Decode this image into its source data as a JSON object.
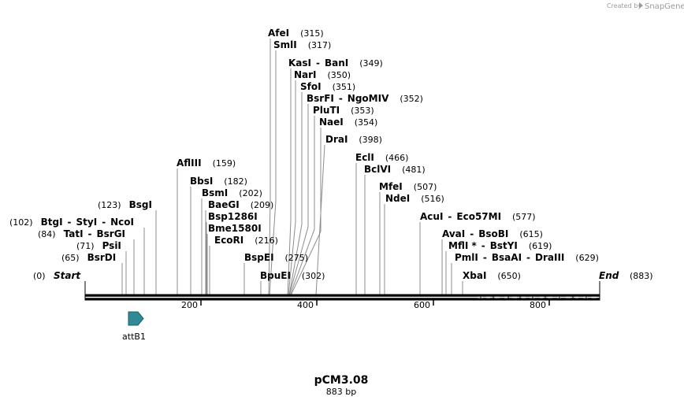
{
  "credit": {
    "created_by": "Created by",
    "brand": "SnapGene"
  },
  "map": {
    "name": "pCM3.08",
    "length_label": "883 bp",
    "start_label": "Start",
    "start_pos": "(0)",
    "end_label": "End",
    "end_pos": "(883)",
    "ticks": [
      "200",
      "400",
      "600",
      "800"
    ]
  },
  "feature": {
    "label": "attB1"
  },
  "sites": [
    {
      "names": [
        "AfeI"
      ],
      "pos": "(315)"
    },
    {
      "names": [
        "SmlI"
      ],
      "pos": "(317)"
    },
    {
      "names": [
        "KasI",
        "BanI"
      ],
      "pos": "(349)"
    },
    {
      "names": [
        "NarI"
      ],
      "pos": "(350)"
    },
    {
      "names": [
        "SfoI"
      ],
      "pos": "(351)"
    },
    {
      "names": [
        "BsrFI",
        "NgoMIV"
      ],
      "pos": "(352)"
    },
    {
      "names": [
        "PluTI"
      ],
      "pos": "(353)"
    },
    {
      "names": [
        "NaeI"
      ],
      "pos": "(354)"
    },
    {
      "names": [
        "DraI"
      ],
      "pos": "(398)"
    },
    {
      "names": [
        "EclI"
      ],
      "pos": "(466)"
    },
    {
      "names": [
        "AflIII"
      ],
      "pos": "(159)"
    },
    {
      "names": [
        "BclVI"
      ],
      "pos": "(481)"
    },
    {
      "names": [
        "BbsI"
      ],
      "pos": "(182)"
    },
    {
      "names": [
        "MfeI"
      ],
      "pos": "(507)"
    },
    {
      "names": [
        "BsmI"
      ],
      "pos": "(202)"
    },
    {
      "names": [
        "NdeI"
      ],
      "pos": "(516)"
    },
    {
      "names": [
        "BsgI"
      ],
      "pos": "(123)"
    },
    {
      "names": [
        "BaeGI"
      ],
      "pos": "(209)"
    },
    {
      "names": [
        "Bsp1286I"
      ],
      "pos": ""
    },
    {
      "names": [
        "AcuI",
        "Eco57MI"
      ],
      "pos": "(577)"
    },
    {
      "names": [
        "BtgI",
        "StyI",
        "NcoI"
      ],
      "pos": "(102)"
    },
    {
      "names": [
        "Bme1580I"
      ],
      "pos": ""
    },
    {
      "names": [
        "TatI",
        "BsrGI"
      ],
      "pos": "(84)"
    },
    {
      "names": [
        "EcoRI"
      ],
      "pos": "(216)"
    },
    {
      "names": [
        "AvaI",
        "BsoBI"
      ],
      "pos": "(615)"
    },
    {
      "names": [
        "PsiI"
      ],
      "pos": "(71)"
    },
    {
      "names": [
        "MflI *",
        "BstYI"
      ],
      "pos": "(619)"
    },
    {
      "names": [
        "BsrDI"
      ],
      "pos": "(65)"
    },
    {
      "names": [
        "BspEI"
      ],
      "pos": "(275)"
    },
    {
      "names": [
        "PmlI",
        "BsaAI",
        "DraIII"
      ],
      "pos": "(629)"
    },
    {
      "names": [
        "BpuEI"
      ],
      "pos": "(302)"
    },
    {
      "names": [
        "XbaI"
      ],
      "pos": "(650)"
    }
  ],
  "sep": "-"
}
